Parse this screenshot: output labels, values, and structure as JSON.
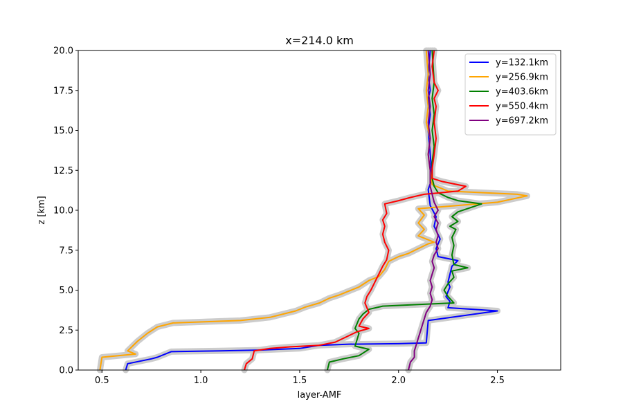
{
  "chart_data": {
    "type": "line",
    "title": "x=214.0 km",
    "xlabel": "layer-AMF",
    "ylabel": "z [km]",
    "xlim": [
      0.38,
      2.82
    ],
    "ylim": [
      0,
      20
    ],
    "xticks": [
      "0.5",
      "1.0",
      "1.5",
      "2.0",
      "2.5"
    ],
    "xtick_values": [
      0.5,
      1.0,
      1.5,
      2.0,
      2.5
    ],
    "yticks": [
      "0.0",
      "2.5",
      "5.0",
      "7.5",
      "10.0",
      "12.5",
      "15.0",
      "17.5",
      "20.0"
    ],
    "ytick_values": [
      0,
      2.5,
      5,
      7.5,
      10,
      12.5,
      15,
      17.5,
      20
    ],
    "grid": false,
    "legend_position": "top-right",
    "uncertainty_band_color": "#cccccc",
    "series": [
      {
        "name": "y=132.1km",
        "color": "#0000ff",
        "points": [
          [
            0.62,
            0
          ],
          [
            0.63,
            0.4
          ],
          [
            0.75,
            0.7
          ],
          [
            0.78,
            0.8
          ],
          [
            0.85,
            1.15
          ],
          [
            1.1,
            1.2
          ],
          [
            1.3,
            1.25
          ],
          [
            1.5,
            1.35
          ],
          [
            1.6,
            1.55
          ],
          [
            1.75,
            1.62
          ],
          [
            2.0,
            1.65
          ],
          [
            2.14,
            1.7
          ],
          [
            2.15,
            3.1
          ],
          [
            2.5,
            3.7
          ],
          [
            2.25,
            3.9
          ],
          [
            2.26,
            4.3
          ],
          [
            2.24,
            4.6
          ],
          [
            2.26,
            5.2
          ],
          [
            2.25,
            5.5
          ],
          [
            2.27,
            6.5
          ],
          [
            2.3,
            6.85
          ],
          [
            2.2,
            7.1
          ],
          [
            2.19,
            7.6
          ],
          [
            2.21,
            8.2
          ],
          [
            2.18,
            9.0
          ],
          [
            2.19,
            9.6
          ],
          [
            2.16,
            10.3
          ],
          [
            2.15,
            11.3
          ],
          [
            2.17,
            12.0
          ],
          [
            2.16,
            13.5
          ],
          [
            2.15,
            15.0
          ],
          [
            2.16,
            16.0
          ],
          [
            2.15,
            17.0
          ],
          [
            2.16,
            17.5
          ],
          [
            2.15,
            18.5
          ],
          [
            2.16,
            20
          ]
        ]
      },
      {
        "name": "y=256.9km",
        "color": "#ffa500",
        "points": [
          [
            0.49,
            0
          ],
          [
            0.5,
            0.8
          ],
          [
            0.67,
            1.0
          ],
          [
            0.63,
            1.2
          ],
          [
            0.68,
            1.8
          ],
          [
            0.73,
            2.3
          ],
          [
            0.78,
            2.7
          ],
          [
            0.86,
            2.95
          ],
          [
            1.2,
            3.1
          ],
          [
            1.35,
            3.3
          ],
          [
            1.48,
            3.7
          ],
          [
            1.53,
            3.95
          ],
          [
            1.6,
            4.2
          ],
          [
            1.65,
            4.5
          ],
          [
            1.7,
            4.7
          ],
          [
            1.75,
            4.95
          ],
          [
            1.8,
            5.2
          ],
          [
            1.85,
            5.6
          ],
          [
            1.9,
            5.85
          ],
          [
            1.93,
            6.3
          ],
          [
            1.95,
            6.8
          ],
          [
            2.0,
            7.1
          ],
          [
            2.05,
            7.3
          ],
          [
            2.1,
            7.6
          ],
          [
            2.15,
            7.9
          ],
          [
            2.18,
            8.0
          ],
          [
            2.1,
            8.4
          ],
          [
            2.13,
            8.8
          ],
          [
            2.1,
            9.2
          ],
          [
            2.13,
            9.7
          ],
          [
            2.1,
            10.1
          ],
          [
            2.5,
            10.5
          ],
          [
            2.65,
            10.9
          ],
          [
            2.6,
            11.0
          ],
          [
            2.25,
            11.2
          ],
          [
            2.17,
            11.6
          ],
          [
            2.16,
            12.5
          ],
          [
            2.15,
            13.5
          ],
          [
            2.16,
            14.5
          ],
          [
            2.14,
            15.5
          ],
          [
            2.15,
            16.5
          ],
          [
            2.14,
            17.5
          ],
          [
            2.15,
            18.5
          ],
          [
            2.14,
            20
          ]
        ]
      },
      {
        "name": "y=403.6km",
        "color": "#008000",
        "points": [
          [
            1.64,
            0
          ],
          [
            1.65,
            0.5
          ],
          [
            1.72,
            0.7
          ],
          [
            1.8,
            0.9
          ],
          [
            1.85,
            1.3
          ],
          [
            1.78,
            1.5
          ],
          [
            1.79,
            1.9
          ],
          [
            1.8,
            2.3
          ],
          [
            1.78,
            2.6
          ],
          [
            1.8,
            3.2
          ],
          [
            1.82,
            3.5
          ],
          [
            1.85,
            3.8
          ],
          [
            1.92,
            4.0
          ],
          [
            2.1,
            4.1
          ],
          [
            2.28,
            4.2
          ],
          [
            2.25,
            4.6
          ],
          [
            2.23,
            5.0
          ],
          [
            2.25,
            5.4
          ],
          [
            2.28,
            5.8
          ],
          [
            2.27,
            6.2
          ],
          [
            2.35,
            6.4
          ],
          [
            2.28,
            6.6
          ],
          [
            2.27,
            7.2
          ],
          [
            2.28,
            7.8
          ],
          [
            2.27,
            8.3
          ],
          [
            2.29,
            8.8
          ],
          [
            2.26,
            9.0
          ],
          [
            2.3,
            9.3
          ],
          [
            2.27,
            9.6
          ],
          [
            2.3,
            9.9
          ],
          [
            2.42,
            10.4
          ],
          [
            2.3,
            10.6
          ],
          [
            2.25,
            10.8
          ],
          [
            2.2,
            11.1
          ],
          [
            2.18,
            11.5
          ],
          [
            2.17,
            12.0
          ],
          [
            2.17,
            13.0
          ],
          [
            2.18,
            14.0
          ],
          [
            2.17,
            15.0
          ],
          [
            2.18,
            16.0
          ],
          [
            2.17,
            17.0
          ],
          [
            2.18,
            18.0
          ],
          [
            2.17,
            20
          ]
        ]
      },
      {
        "name": "y=550.4km",
        "color": "#ff0000",
        "points": [
          [
            1.22,
            0
          ],
          [
            1.23,
            0.4
          ],
          [
            1.26,
            0.7
          ],
          [
            1.27,
            1.2
          ],
          [
            1.35,
            1.35
          ],
          [
            1.45,
            1.45
          ],
          [
            1.6,
            1.55
          ],
          [
            1.68,
            1.75
          ],
          [
            1.74,
            2.1
          ],
          [
            1.79,
            2.4
          ],
          [
            1.85,
            2.6
          ],
          [
            1.8,
            2.75
          ],
          [
            1.82,
            3.2
          ],
          [
            1.85,
            3.6
          ],
          [
            1.83,
            4.2
          ],
          [
            1.84,
            4.6
          ],
          [
            1.86,
            5.0
          ],
          [
            1.88,
            5.5
          ],
          [
            1.9,
            6.0
          ],
          [
            1.92,
            6.5
          ],
          [
            1.94,
            6.9
          ],
          [
            1.95,
            7.5
          ],
          [
            1.93,
            8.0
          ],
          [
            1.92,
            8.5
          ],
          [
            1.93,
            9.0
          ],
          [
            1.92,
            9.4
          ],
          [
            1.94,
            9.8
          ],
          [
            1.93,
            10.4
          ],
          [
            2.0,
            10.6
          ],
          [
            2.06,
            10.8
          ],
          [
            2.13,
            11.0
          ],
          [
            2.3,
            11.2
          ],
          [
            2.34,
            11.5
          ],
          [
            2.22,
            11.8
          ],
          [
            2.17,
            12.0
          ],
          [
            2.17,
            12.6
          ],
          [
            2.18,
            13.5
          ],
          [
            2.19,
            14.5
          ],
          [
            2.18,
            15.5
          ],
          [
            2.19,
            16.5
          ],
          [
            2.18,
            17.0
          ],
          [
            2.2,
            17.5
          ],
          [
            2.18,
            18.0
          ],
          [
            2.17,
            19.0
          ],
          [
            2.18,
            20
          ]
        ]
      },
      {
        "name": "y=697.2km",
        "color": "#800080",
        "points": [
          [
            2.05,
            0
          ],
          [
            2.06,
            0.5
          ],
          [
            2.08,
            0.8
          ],
          [
            2.08,
            1.2
          ],
          [
            2.09,
            1.6
          ],
          [
            2.1,
            2.0
          ],
          [
            2.11,
            2.4
          ],
          [
            2.12,
            2.8
          ],
          [
            2.13,
            3.2
          ],
          [
            2.14,
            3.6
          ],
          [
            2.16,
            4.0
          ],
          [
            2.17,
            4.4
          ],
          [
            2.16,
            4.8
          ],
          [
            2.17,
            5.2
          ],
          [
            2.16,
            5.6
          ],
          [
            2.17,
            6.0
          ],
          [
            2.18,
            6.4
          ],
          [
            2.17,
            6.8
          ],
          [
            2.18,
            7.2
          ],
          [
            2.2,
            7.6
          ],
          [
            2.19,
            8.0
          ],
          [
            2.2,
            8.4
          ],
          [
            2.19,
            8.8
          ],
          [
            2.2,
            9.2
          ],
          [
            2.18,
            9.6
          ],
          [
            2.2,
            10.0
          ],
          [
            2.18,
            10.5
          ],
          [
            2.17,
            11.0
          ],
          [
            2.16,
            11.5
          ],
          [
            2.16,
            12.5
          ],
          [
            2.15,
            13.5
          ],
          [
            2.16,
            14.5
          ],
          [
            2.15,
            15.5
          ],
          [
            2.16,
            16.5
          ],
          [
            2.15,
            17.5
          ],
          [
            2.16,
            18.5
          ],
          [
            2.15,
            20
          ]
        ]
      }
    ]
  }
}
